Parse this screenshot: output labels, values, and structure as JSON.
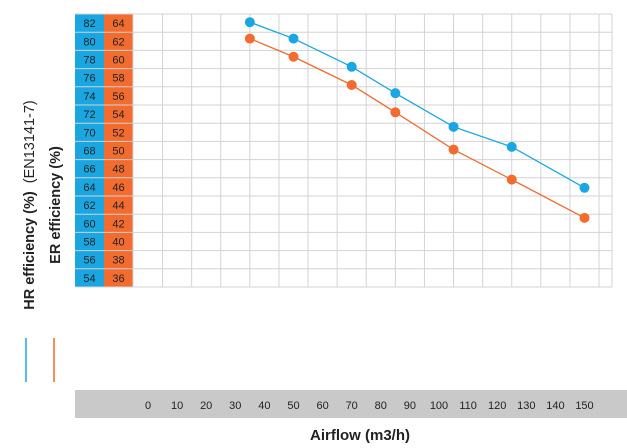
{
  "chart_data": {
    "type": "line",
    "xlabel": "Airflow (m3/h)",
    "x_ticks": [
      "0",
      "10",
      "20",
      "30",
      "40",
      "50",
      "60",
      "70",
      "80",
      "90",
      "100",
      "110",
      "120",
      "130",
      "140",
      "150"
    ],
    "hr_ticks": [
      "82",
      "80",
      "78",
      "76",
      "74",
      "72",
      "70",
      "68",
      "66",
      "64",
      "62",
      "60",
      "58",
      "56",
      "54"
    ],
    "er_ticks": [
      "64",
      "62",
      "60",
      "58",
      "56",
      "54",
      "52",
      "50",
      "48",
      "46",
      "44",
      "42",
      "40",
      "38",
      "36"
    ],
    "ylabels": {
      "hr_bold": "HR efficiency (%)",
      "hr_note": "(EN13141-7)",
      "er_bold": "ER efficiency (%)"
    },
    "grid": true,
    "colors": {
      "hr": "#1aa7e1",
      "er": "#f26b2f",
      "tick_band": "#c9c9c9",
      "grid": "#d3d3d3"
    },
    "series": [
      {
        "key": "hr",
        "axis": "HR",
        "x": [
          35,
          50,
          70,
          85,
          105,
          125,
          150
        ],
        "y": [
          82.1,
          80.3,
          77.2,
          74.3,
          70.6,
          68.4,
          63.9
        ]
      },
      {
        "key": "er",
        "axis": "ER",
        "x": [
          35,
          50,
          70,
          85,
          105,
          125,
          150
        ],
        "y": [
          62.3,
          60.3,
          57.2,
          54.2,
          50.1,
          46.8,
          42.6
        ]
      }
    ]
  }
}
